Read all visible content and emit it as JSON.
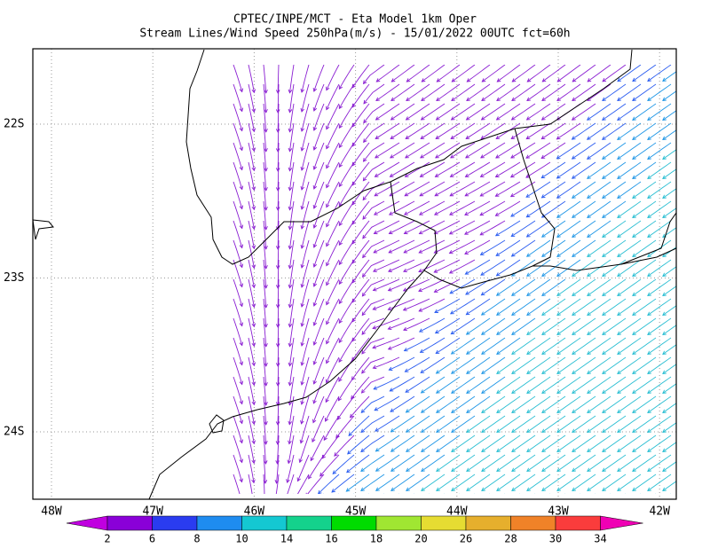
{
  "header": {
    "title": "CPTEC/INPE/MCT -  Eta Model 1km Oper",
    "subtitle": "Stream Lines/Wind Speed 250hPa(m/s) - 15/01/2022 00UTC fct=60h"
  },
  "map": {
    "longitude_labels": [
      "48W",
      "47W",
      "46W",
      "45W",
      "44W",
      "43W",
      "42W"
    ],
    "latitude_labels": [
      "22S",
      "23S",
      "24S"
    ]
  },
  "colorbar": {
    "labels": [
      2,
      6,
      8,
      10,
      14,
      16,
      18,
      20,
      26,
      28,
      30,
      34
    ],
    "colors": [
      "#c000e0",
      "#8a00d8",
      "#2a3cf0",
      "#1e8cf0",
      "#14c8d2",
      "#14d28c",
      "#00dc00",
      "#a0e632",
      "#e6dc32",
      "#e6af2d",
      "#f08228",
      "#fa3c3c",
      "#f000b4"
    ]
  }
}
